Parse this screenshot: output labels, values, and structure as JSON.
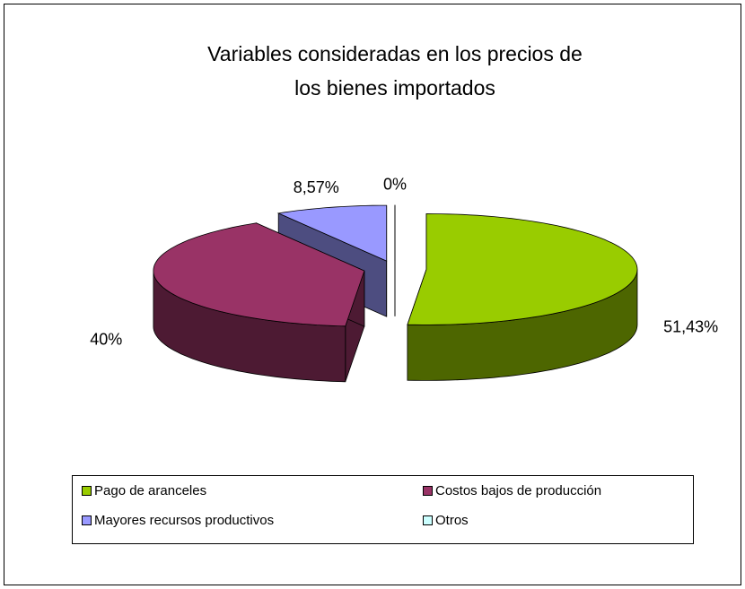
{
  "chart_data": {
    "type": "pie",
    "view": "3d-exploded",
    "title": [
      "Variables consideradas en los precios de",
      "los bienes importados"
    ],
    "categories": [
      "Pago de aranceles",
      "Costos bajos de producción",
      "Mayores recursos productivos",
      "Otros"
    ],
    "values": [
      51.43,
      40,
      8.57,
      0
    ],
    "value_labels": [
      "51,43%",
      "40%",
      "8,57%",
      "0%"
    ],
    "colors": [
      "#99cc00",
      "#993366",
      "#9999ff",
      "#ccffff"
    ],
    "legend": "bottom"
  }
}
